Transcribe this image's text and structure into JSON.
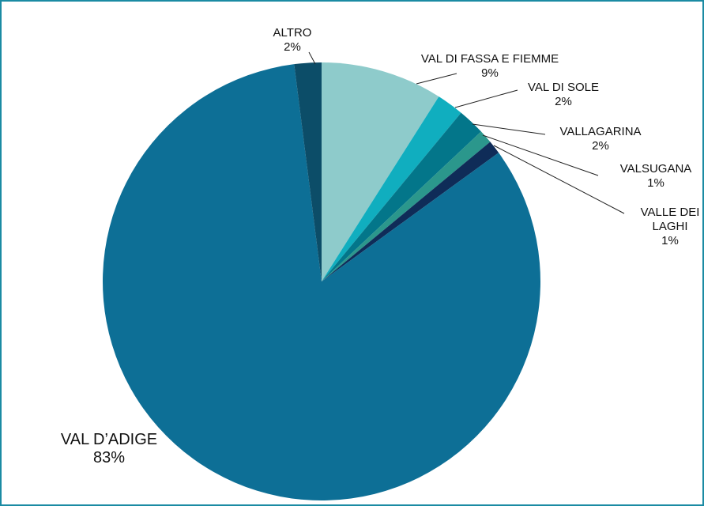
{
  "chart_data": {
    "type": "pie",
    "categories": [
      "VAL DI FASSA E FIEMME",
      "VAL DI SOLE",
      "VALLAGARINA",
      "VALSUGANA",
      "VALLE DEI LAGHI",
      "VAL D’ADIGE",
      "ALTRO"
    ],
    "values": [
      9,
      2,
      2,
      1,
      1,
      83,
      2
    ],
    "value_labels": [
      "9%",
      "2%",
      "2%",
      "1%",
      "1%",
      "83%",
      "2%"
    ],
    "colors": [
      "#8ecbcb",
      "#10aebf",
      "#03768a",
      "#2b978c",
      "#0f2c58",
      "#0d6f96",
      "#0c4d68"
    ]
  }
}
